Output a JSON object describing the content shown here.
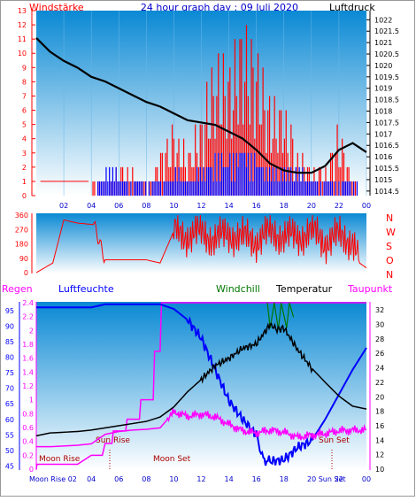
{
  "header": {
    "left_label": "Windstärke",
    "title": "24 hour graph day : 09 Juli 2020",
    "right_label": "Luftdruck"
  },
  "legend3": {
    "regen": "Regen",
    "luftfeuchte": "Luftfeuchte",
    "windchill": "Windchill",
    "temperatur": "Temperatur",
    "taupunkt": "Taupunkt"
  },
  "colors": {
    "red": "#ff0000",
    "blue": "#0000ff",
    "black": "#000000",
    "magenta": "#ff00ff",
    "green": "#007700",
    "dark_red": "#aa0000",
    "panel_top": "#0a89d4",
    "panel_bottom": "#ffffff"
  },
  "chart_data": [
    {
      "id": "wind_pressure",
      "type": "line",
      "x_tick_labels": [
        "02",
        "04",
        "06",
        "08",
        "10",
        "12",
        "14",
        "16",
        "18",
        "20",
        "22",
        "00"
      ],
      "x_hours": [
        2,
        4,
        6,
        8,
        10,
        12,
        14,
        16,
        18,
        20,
        22,
        24
      ],
      "left_ticks": [
        "0",
        "1",
        "2",
        "3",
        "4",
        "5",
        "6",
        "7",
        "8",
        "9",
        "10",
        "11",
        "12",
        "13"
      ],
      "right_ticks": [
        "1014.5",
        "1015",
        "1015.5",
        "1016",
        "1016.5",
        "1017",
        "1017.5",
        "1018",
        "1018.5",
        "1019",
        "1019.5",
        "1020",
        "1020.5",
        "1021",
        "1021.5",
        "1022"
      ],
      "ylim_left": [
        0,
        13
      ],
      "ylim_right": [
        1014.3,
        1022.4
      ],
      "series": [
        {
          "name": "Luftdruck",
          "color": "#000000",
          "x": [
            0,
            1,
            2,
            3,
            4,
            5,
            6,
            7,
            8,
            9,
            10,
            11,
            12,
            13,
            14,
            15,
            16,
            17,
            18,
            19,
            20,
            21,
            22,
            23,
            24
          ],
          "values": [
            1021.2,
            1020.6,
            1020.2,
            1019.9,
            1019.5,
            1019.3,
            1019.0,
            1018.7,
            1018.4,
            1018.2,
            1017.9,
            1017.6,
            1017.5,
            1017.4,
            1017.1,
            1016.8,
            1016.3,
            1015.7,
            1015.4,
            1015.3,
            1015.3,
            1015.6,
            1016.3,
            1016.6,
            1016.2
          ]
        },
        {
          "name": "Windböen",
          "color": "#ff0000",
          "x": [
            0,
            4,
            5,
            6,
            7,
            8,
            9,
            10,
            11,
            12,
            13,
            14,
            15,
            16,
            17,
            18,
            19,
            20,
            21,
            22,
            23,
            24
          ],
          "values": [
            0,
            1,
            1,
            2,
            2,
            1,
            3,
            5,
            3,
            6,
            10,
            10,
            13,
            11,
            7,
            7,
            3,
            2,
            2,
            5,
            1,
            0
          ]
        },
        {
          "name": "Windstärke",
          "color": "#0000ff",
          "x": [
            0,
            4,
            5,
            6,
            7,
            8,
            9,
            10,
            11,
            12,
            13,
            14,
            15,
            16,
            17,
            18,
            19,
            20,
            21,
            22,
            23,
            24
          ],
          "values": [
            0,
            0,
            2,
            2,
            1,
            1,
            1,
            2,
            1,
            2,
            3,
            3,
            4,
            3,
            2,
            2,
            2,
            1,
            1,
            1,
            1,
            0
          ]
        }
      ]
    },
    {
      "id": "wind_direction",
      "type": "line",
      "left_ticks": [
        "0",
        "90",
        "180",
        "270",
        "360"
      ],
      "right_labels": [
        "N",
        "W",
        "S",
        "O",
        "N"
      ],
      "ylim": [
        0,
        360
      ],
      "series": [
        {
          "name": "Windrichtung",
          "color": "#ff0000",
          "x": [
            0,
            1.2,
            2,
            3,
            4.2,
            5,
            6,
            7,
            8,
            9,
            10,
            11,
            12,
            13,
            14,
            15,
            16,
            17,
            18,
            19,
            20,
            21,
            22,
            23,
            23.5,
            24
          ],
          "values": [
            0,
            60,
            330,
            310,
            300,
            80,
            80,
            80,
            80,
            60,
            260,
            230,
            250,
            210,
            240,
            220,
            200,
            250,
            230,
            220,
            260,
            190,
            230,
            200,
            60,
            30
          ]
        }
      ]
    },
    {
      "id": "temp_humidity",
      "type": "line",
      "x_tick_labels": [
        "02",
        "04",
        "06",
        "08",
        "10",
        "12",
        "14",
        "16",
        "18",
        "20",
        "22",
        "00"
      ],
      "x_hours": [
        2,
        4,
        6,
        8,
        10,
        12,
        14,
        16,
        18,
        20,
        22,
        24
      ],
      "rain_ticks": [
        "0",
        "0.2",
        "0.4",
        "0.6",
        "0.8",
        "1",
        "1.2",
        "1.4",
        "1.6",
        "1.8",
        "2",
        "2.2",
        "2.4"
      ],
      "humidity_ticks": [
        "45",
        "50",
        "55",
        "60",
        "65",
        "70",
        "75",
        "80",
        "85",
        "90",
        "95"
      ],
      "temp_ticks": [
        "10",
        "12",
        "14",
        "16",
        "18",
        "20",
        "22",
        "24",
        "26",
        "28",
        "30",
        "32"
      ],
      "ylim_rain": [
        0,
        2.4
      ],
      "ylim_humidity": [
        44,
        97.5
      ],
      "ylim_temp": [
        10,
        33
      ],
      "astro": {
        "sun_rise": "Sun Rise",
        "sun_set": "Sun Set",
        "moon_rise": "Moon Rise",
        "moon_set": "Moon Set",
        "moon_rise_axis": "Moon Rise 02",
        "sun_set_axis": "20 Sun Set"
      },
      "series": [
        {
          "name": "Temperatur",
          "color": "#000000",
          "x": [
            0,
            1,
            2,
            3,
            4,
            5,
            6,
            7,
            8,
            9,
            10,
            11,
            12,
            13,
            14,
            15,
            16,
            17,
            17.5,
            18,
            19,
            20,
            21,
            22,
            23,
            24
          ],
          "values": [
            14.6,
            15.0,
            15.1,
            15.2,
            15.4,
            15.7,
            16.0,
            16.3,
            16.6,
            17.2,
            18.6,
            20.7,
            22.4,
            24.3,
            25.3,
            26.7,
            27.3,
            30.0,
            29.3,
            29.5,
            26.5,
            24.0,
            22.0,
            20.1,
            18.7,
            18.3
          ]
        },
        {
          "name": "Luftfeuchte",
          "color": "#0000ff",
          "x": [
            0,
            1,
            2,
            3,
            4,
            5,
            6,
            7,
            8,
            9,
            10,
            11,
            12,
            13,
            14,
            15,
            16,
            16.5,
            17,
            18,
            19,
            20,
            21,
            22,
            23,
            24
          ],
          "values": [
            96,
            96,
            96,
            96,
            96,
            97,
            97,
            97,
            97,
            97,
            95.5,
            92,
            86,
            76,
            66,
            60,
            55,
            47,
            46.5,
            47,
            51,
            53,
            60,
            68,
            76,
            83
          ]
        },
        {
          "name": "Taupunkt",
          "color": "#ff00ff",
          "x": [
            0,
            1,
            2,
            3,
            4,
            5,
            6,
            7,
            8,
            9,
            10,
            11,
            12,
            13,
            14,
            15,
            16,
            17,
            18,
            19,
            20,
            21,
            22,
            23,
            24
          ],
          "values": [
            13.1,
            13.1,
            13.2,
            13.3,
            13.5,
            14.8,
            15.2,
            15.4,
            15.5,
            15.7,
            17.9,
            17.3,
            17.6,
            17.2,
            16.2,
            15.3,
            15.0,
            15.4,
            15.1,
            14.4,
            14.7,
            14.9,
            15.3,
            15.4,
            15.4
          ]
        },
        {
          "name": "Regen",
          "color": "#ff00ff",
          "x": [
            0,
            0.05,
            3,
            4,
            4.8,
            5,
            5.5,
            5.6,
            6.5,
            6.6,
            7.5,
            7.6,
            8.5,
            8.6,
            9,
            9.1,
            24
          ],
          "values": [
            0,
            0.07,
            0.07,
            0.2,
            0.2,
            0.37,
            0.37,
            0.55,
            0.55,
            0.72,
            0.72,
            1.0,
            1.0,
            1.7,
            1.7,
            2.4,
            2.4
          ]
        },
        {
          "name": "Windchill",
          "color": "#007700",
          "x": [
            16.8,
            17,
            17.3,
            17.6,
            17.8,
            18.2,
            18.4,
            18.7
          ],
          "values": [
            33,
            29.5,
            33,
            29.3,
            33,
            29.5,
            33,
            31
          ]
        }
      ]
    }
  ]
}
